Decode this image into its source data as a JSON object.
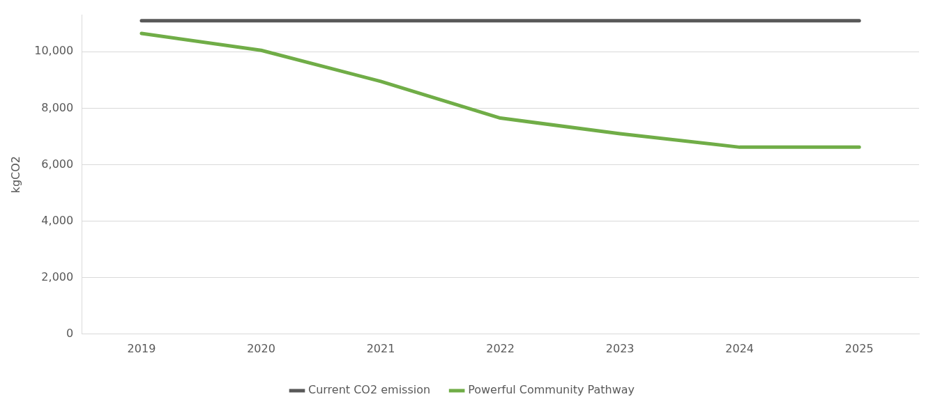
{
  "chart_data": {
    "type": "line",
    "ylabel": "kgCO2",
    "categories": [
      "2019",
      "2020",
      "2021",
      "2022",
      "2023",
      "2024",
      "2025"
    ],
    "series": [
      {
        "name": "Current CO2 emission",
        "color": "#595959",
        "values": [
          11100,
          11100,
          11100,
          11100,
          11100,
          11100,
          11100
        ]
      },
      {
        "name": "Powerful Community Pathway",
        "color": "#70ad47",
        "values": [
          10650,
          10050,
          8950,
          7650,
          7100,
          6620,
          6620
        ]
      }
    ],
    "ylim": [
      0,
      11300
    ],
    "yticks": [
      0,
      {
        "value": 2000,
        "label": "2,000"
      },
      {
        "value": 4000,
        "label": "4,000"
      },
      {
        "value": 6000,
        "label": "6,000"
      },
      {
        "value": 8000,
        "label": "8,000"
      },
      {
        "value": 10000,
        "label": "10,000"
      }
    ],
    "grid": "y",
    "legend": "bottom",
    "marker": "none",
    "line_style": "solid"
  }
}
